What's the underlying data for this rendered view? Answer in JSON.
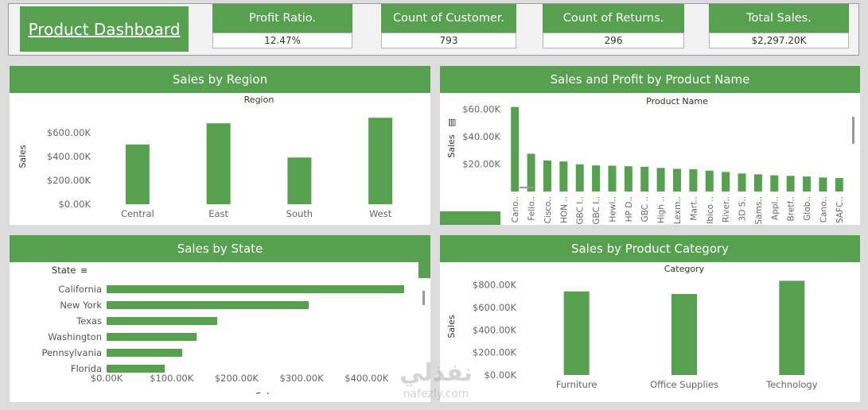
{
  "dashboard": {
    "title": "Product Dashboard",
    "kpis": [
      {
        "label": "Profit Ratio.",
        "value": "12.47%"
      },
      {
        "label": "Count of Customer.",
        "value": "793"
      },
      {
        "label": "Count of Returns.",
        "value": "296"
      },
      {
        "label": "Total Sales.",
        "value": "$2,297.20K"
      }
    ]
  },
  "colors": {
    "accent": "#57a050",
    "bar": "#57a050"
  },
  "watermark": {
    "arabic": "نفذلي",
    "latin": "nafezly.com"
  },
  "chart_data": [
    {
      "id": "region",
      "type": "bar",
      "title": "Sales by Region",
      "header": "Region",
      "ylabel": "Sales",
      "categories": [
        "Central",
        "East",
        "South",
        "West"
      ],
      "values": [
        501240,
        678781,
        391722,
        725458
      ],
      "ylim": [
        0,
        800000
      ],
      "yticks": [
        0,
        200000,
        400000,
        600000
      ],
      "ytick_labels": [
        "$0.00K",
        "$200.00K",
        "$400.00K",
        "$600.00K"
      ]
    },
    {
      "id": "product",
      "type": "bar",
      "title": "Sales and Profit by Product Name",
      "header": "Product Name",
      "ylabel": "Sales",
      "categories": [
        "Cano..",
        "Fello..",
        "Cisco..",
        "HON ..",
        "GBC I..",
        "GBC I..",
        "Hewl..",
        "HP D..",
        "GBC ..",
        "High ..",
        "Lexm..",
        "Mart..",
        "Ibico ..",
        "River..",
        "3D S..",
        "Sams..",
        "Appl..",
        "Bretf..",
        "Glob..",
        "Cano..",
        "SAFC.."
      ],
      "values": [
        61600,
        27500,
        22600,
        21900,
        19800,
        19000,
        18800,
        18400,
        18000,
        17200,
        16500,
        16200,
        15200,
        14200,
        13100,
        12500,
        11800,
        11400,
        10900,
        10200,
        9800
      ],
      "ylim": [
        0,
        66000
      ],
      "yticks": [
        20000,
        40000,
        60000
      ],
      "ytick_labels": [
        "$20.00K",
        "$40.00K",
        "$60.00K"
      ]
    },
    {
      "id": "state",
      "type": "bar",
      "orientation": "horizontal",
      "title": "Sales by State",
      "header": "State",
      "xlabel": "Sales",
      "categories": [
        "California",
        "New York",
        "Texas",
        "Washington",
        "Pennsylvania",
        "Florida"
      ],
      "values": [
        457688,
        310876,
        170188,
        138641,
        116512,
        89474
      ],
      "xlim": [
        0,
        470000
      ],
      "xticks": [
        0,
        100000,
        200000,
        300000,
        400000
      ],
      "xtick_labels": [
        "$0.00K",
        "$100.00K",
        "$200.00K",
        "$300.00K",
        "$400.00K"
      ]
    },
    {
      "id": "category",
      "type": "bar",
      "title": "Sales by Product Category",
      "header": "Category",
      "ylabel": "Sales",
      "categories": [
        "Furniture",
        "Office Supplies",
        "Technology"
      ],
      "values": [
        741999,
        719047,
        836154
      ],
      "ylim": [
        0,
        860000
      ],
      "yticks": [
        0,
        200000,
        400000,
        600000,
        800000
      ],
      "ytick_labels": [
        "$0.00K",
        "$200.00K",
        "$400.00K",
        "$600.00K",
        "$800.00K"
      ]
    }
  ]
}
